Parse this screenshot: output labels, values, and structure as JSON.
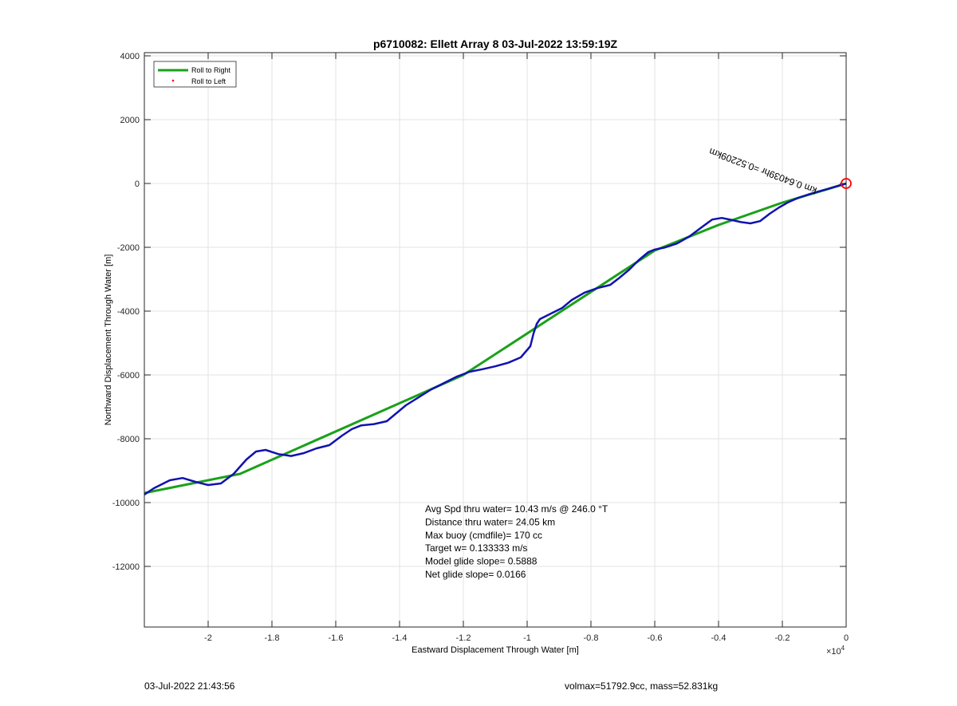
{
  "footer": {
    "left": "03-Jul-2022 21:43:56",
    "right": "volmax=51792.9cc, mass=52.831kg"
  },
  "chart_data": {
    "type": "line",
    "title": "p6710082: Ellett Array 8 03-Jul-2022 13:59:19Z",
    "xlabel": "Eastward Displacement Through Water [m]",
    "ylabel": "Northward Displacement Through Water [m]",
    "x_exponent_label": "×10",
    "x_exponent_value": "4",
    "xlim": [
      -2.2,
      0
    ],
    "ylim": [
      -13900,
      4100
    ],
    "xticks": [
      -2,
      -1.8,
      -1.6,
      -1.4,
      -1.2,
      -1,
      -0.8,
      -0.6,
      -0.4,
      -0.2,
      0
    ],
    "xtick_labels": [
      "-2",
      "-1.8",
      "-1.6",
      "-1.4",
      "-1.2",
      "-1",
      "-0.8",
      "-0.6",
      "-0.4",
      "-0.2",
      "0"
    ],
    "yticks": [
      4000,
      2000,
      0,
      -2000,
      -4000,
      -6000,
      -8000,
      -10000,
      -12000
    ],
    "ytick_labels": [
      "4000",
      "2000",
      "0",
      "-2000",
      "-4000",
      "-6000",
      "-8000",
      "-10000",
      "-12000"
    ],
    "grid": true,
    "legend_position": "top-left",
    "series": [
      {
        "name": "Roll to Right",
        "color": "#1aa11a",
        "style": "line",
        "x": [
          -2.2,
          -1.9,
          -1.2,
          -0.6,
          -0.4,
          -0.2,
          0
        ],
        "y": [
          -9700,
          -9100,
          -6000,
          -2100,
          -1300,
          -600,
          0
        ]
      },
      {
        "name": "Roll to Left",
        "color": "#ff0000",
        "style": "dot",
        "x": [],
        "y": []
      },
      {
        "name": "",
        "color": "#1212b0",
        "style": "line",
        "x": [
          -2.2,
          -2.17,
          -2.12,
          -2.08,
          -2.04,
          -2.0,
          -1.96,
          -1.92,
          -1.88,
          -1.85,
          -1.82,
          -1.78,
          -1.74,
          -1.7,
          -1.66,
          -1.62,
          -1.58,
          -1.55,
          -1.52,
          -1.48,
          -1.44,
          -1.41,
          -1.38,
          -1.34,
          -1.3,
          -1.26,
          -1.22,
          -1.18,
          -1.14,
          -1.1,
          -1.06,
          -1.02,
          -0.99,
          -0.98,
          -0.97,
          -0.96,
          -0.93,
          -0.89,
          -0.86,
          -0.82,
          -0.78,
          -0.74,
          -0.71,
          -0.68,
          -0.65,
          -0.62,
          -0.6,
          -0.57,
          -0.53,
          -0.49,
          -0.45,
          -0.42,
          -0.39,
          -0.36,
          -0.33,
          -0.3,
          -0.27,
          -0.24,
          -0.21,
          -0.18,
          -0.15,
          -0.12,
          -0.09,
          -0.06,
          -0.03,
          0
        ],
        "y": [
          -9750,
          -9550,
          -9300,
          -9230,
          -9350,
          -9450,
          -9400,
          -9100,
          -8650,
          -8400,
          -8350,
          -8480,
          -8540,
          -8450,
          -8300,
          -8200,
          -7900,
          -7700,
          -7580,
          -7540,
          -7450,
          -7200,
          -6950,
          -6700,
          -6450,
          -6250,
          -6050,
          -5900,
          -5820,
          -5730,
          -5620,
          -5450,
          -5100,
          -4700,
          -4400,
          -4250,
          -4100,
          -3900,
          -3650,
          -3420,
          -3280,
          -3180,
          -2950,
          -2700,
          -2400,
          -2150,
          -2070,
          -2010,
          -1880,
          -1650,
          -1350,
          -1130,
          -1080,
          -1140,
          -1210,
          -1250,
          -1180,
          -950,
          -750,
          -580,
          -450,
          -350,
          -260,
          -180,
          -90,
          0
        ]
      }
    ],
    "start_marker": {
      "x": 0,
      "y": 0,
      "color": "#ff0000",
      "shape": "circle"
    },
    "track_annotation": {
      "text": "km 0.64039hr =0.52209km",
      "x": -0.09,
      "y": -140
    },
    "stats": [
      "Avg Spd thru water= 10.43 m/s @ 246.0 °T",
      "Distance thru water= 24.05 km",
      "Max buoy (cmdfile)= 170 cc",
      "Target w= 0.133333 m/s",
      "Model glide slope= 0.5888",
      "Net glide slope= 0.0166"
    ]
  }
}
